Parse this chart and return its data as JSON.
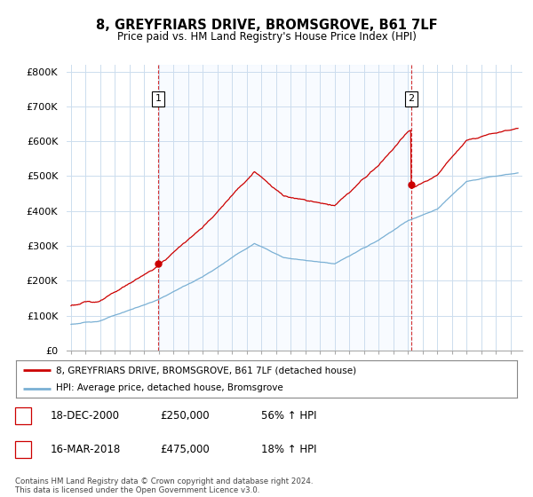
{
  "title": "8, GREYFRIARS DRIVE, BROMSGROVE, B61 7LF",
  "subtitle": "Price paid vs. HM Land Registry's House Price Index (HPI)",
  "ylabel_ticks": [
    "£0",
    "£100K",
    "£200K",
    "£300K",
    "£400K",
    "£500K",
    "£600K",
    "£700K",
    "£800K"
  ],
  "ytick_values": [
    0,
    100000,
    200000,
    300000,
    400000,
    500000,
    600000,
    700000,
    800000
  ],
  "ylim": [
    0,
    820000
  ],
  "sale1_t": 2000.958,
  "sale1_price": 250000,
  "sale2_t": 2018.208,
  "sale2_price": 475000,
  "red_line_color": "#cc0000",
  "blue_line_color": "#7ab0d4",
  "shade_color": "#ddeeff",
  "legend_label1": "8, GREYFRIARS DRIVE, BROMSGROVE, B61 7LF (detached house)",
  "legend_label2": "HPI: Average price, detached house, Bromsgrove",
  "table_row1": [
    "1",
    "18-DEC-2000",
    "£250,000",
    "56% ↑ HPI"
  ],
  "table_row2": [
    "2",
    "16-MAR-2018",
    "£475,000",
    "18% ↑ HPI"
  ],
  "footer": "Contains HM Land Registry data © Crown copyright and database right 2024.\nThis data is licensed under the Open Government Licence v3.0.",
  "background_color": "#ffffff",
  "grid_color": "#ccddee",
  "xstart": 1995,
  "xend": 2025
}
